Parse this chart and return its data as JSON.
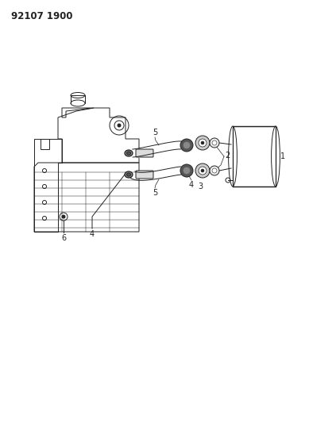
{
  "title": "92107 1900",
  "background_color": "#ffffff",
  "line_color": "#222222",
  "label_color": "#222222",
  "label_fontsize": 7,
  "figsize": [
    3.89,
    5.33
  ],
  "dpi": 100
}
